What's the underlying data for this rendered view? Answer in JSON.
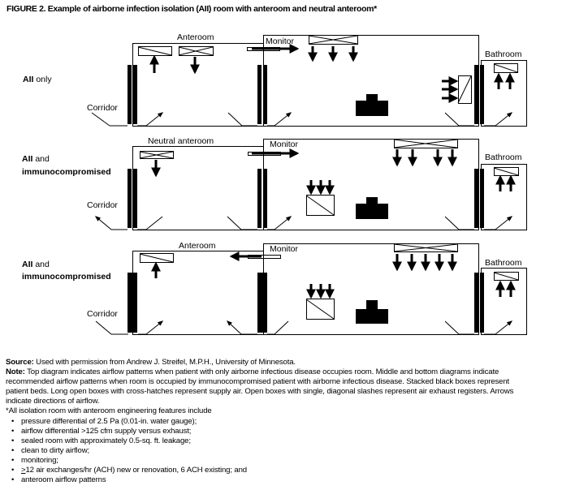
{
  "title": "FIGURE 2. Example of airborne infection isolation (AII) room with anteroom and neutral anteroom*",
  "panels": [
    {
      "row_label_bold": "AII",
      "row_label_rest": " only",
      "row_label_line2": "",
      "anteroom_label": "Anteroom",
      "monitor_label": "Monitor",
      "bathroom_label": "Bathroom",
      "corridor_label": "Corridor"
    },
    {
      "row_label_bold": "AII",
      "row_label_rest": " and",
      "row_label_line2": "immunocompromised",
      "anteroom_label": "Neutral anteroom",
      "monitor_label": "Monitor",
      "bathroom_label": "Bathroom",
      "corridor_label": "Corridor"
    },
    {
      "row_label_bold": "AII",
      "row_label_rest": " and",
      "row_label_line2": "immunocompromised",
      "anteroom_label": "Anteroom",
      "monitor_label": "Monitor",
      "bathroom_label": "Bathroom",
      "corridor_label": "Corridor"
    }
  ],
  "legend_icons": {
    "supply": "cross-hatched-box",
    "exhaust": "diagonal-slash-box",
    "bed": "stacked-black-boxes",
    "door": "black-bar"
  },
  "notes": {
    "source_label": "Source:",
    "source_text": " Used with permission from Andrew J. Streifel, M.P.H., University of Minnesota.",
    "note_label": "Note:",
    "note_lines": [
      " Top diagram indicates airflow patterns when patient with only airborne infectious disease occupies room. Middle and bottom diagrams indicate",
      "recommended airflow patterns when room is occupied by immunocompromised patient with airborne infectious disease. Stacked black boxes represent",
      "patient beds. Long open boxes with cross-hatches represent supply air. Open boxes with single, diagonal slashes represent air exhaust registers. Arrows",
      "indicate directions of airflow."
    ],
    "footnote_intro": "*All isolation room with anteroom engineering features include",
    "bullet_char": "•",
    "bullets": [
      "pressure differential of 2.5 Pa (0.01-in. water gauge);",
      "airflow differential >125 cfm supply versus exhaust;",
      "sealed room with approximately 0.5-sq. ft. leakage;",
      "clean to dirty airflow;",
      "monitoring;",
      "12 air exchanges/hr (ACH) new or renovation, 6 ACH existing; and",
      "anteroom airflow patterns"
    ],
    "ge_symbol": ">"
  }
}
